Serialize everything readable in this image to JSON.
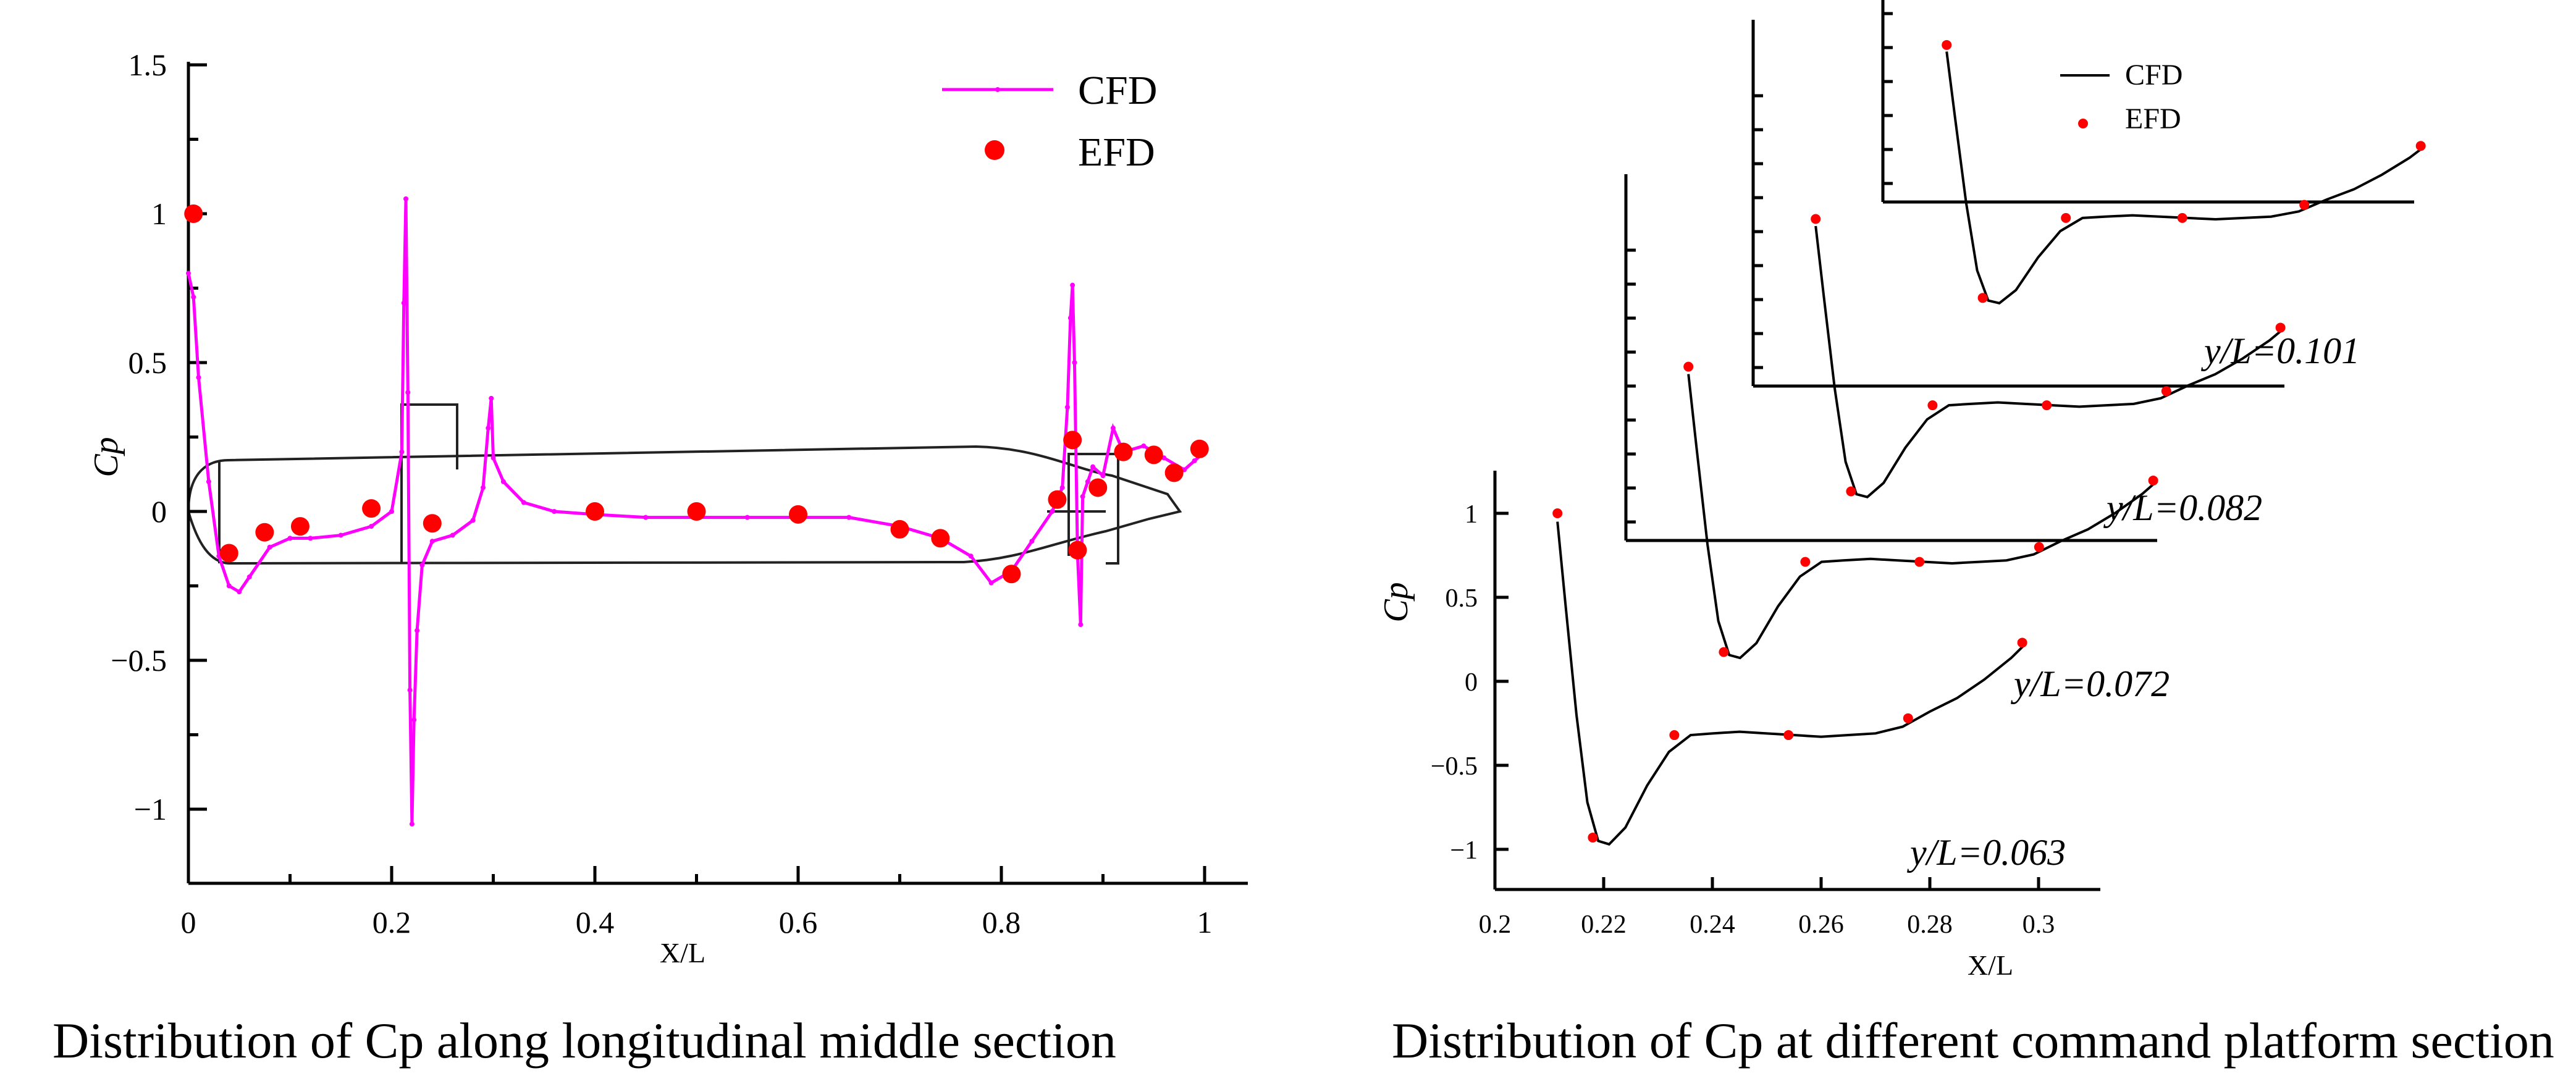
{
  "chart_data": [
    {
      "type": "line",
      "ylabel": "Cp",
      "xlabel": "X/L",
      "xlim": [
        0,
        1.04
      ],
      "ylim": [
        -1.2,
        1.5
      ],
      "xticks": [
        0,
        0.2,
        0.4,
        0.6,
        0.8,
        1
      ],
      "xtick_labels": [
        "0",
        "0.2",
        "0.4",
        "0.6",
        "0.8",
        "1"
      ],
      "yticks": [
        -1,
        -0.5,
        0,
        0.5,
        1,
        1.5
      ],
      "ytick_labels": [
        "−1",
        "−0.5",
        "0",
        "0.5",
        "1",
        "1.5"
      ],
      "legend": [
        "CFD",
        "EFD"
      ],
      "legend_position": "top-right",
      "series": [
        {
          "name": "CFD",
          "color": "#ff00ff",
          "x": [
            0.0,
            0.005,
            0.01,
            0.02,
            0.03,
            0.04,
            0.05,
            0.06,
            0.08,
            0.1,
            0.12,
            0.15,
            0.18,
            0.2,
            0.21,
            0.212,
            0.214,
            0.216,
            0.218,
            0.22,
            0.222,
            0.225,
            0.23,
            0.24,
            0.26,
            0.28,
            0.29,
            0.295,
            0.298,
            0.3,
            0.31,
            0.33,
            0.36,
            0.4,
            0.45,
            0.5,
            0.55,
            0.6,
            0.65,
            0.7,
            0.74,
            0.77,
            0.79,
            0.81,
            0.83,
            0.85,
            0.86,
            0.865,
            0.868,
            0.87,
            0.872,
            0.875,
            0.878,
            0.88,
            0.885,
            0.89,
            0.9,
            0.91,
            0.92,
            0.94,
            0.96,
            0.98,
            0.99,
            1.0
          ],
          "values": [
            0.8,
            0.72,
            0.45,
            0.1,
            -0.15,
            -0.25,
            -0.27,
            -0.22,
            -0.12,
            -0.09,
            -0.09,
            -0.08,
            -0.05,
            0.0,
            0.2,
            0.7,
            1.05,
            0.4,
            -0.6,
            -1.05,
            -0.7,
            -0.4,
            -0.18,
            -0.1,
            -0.08,
            -0.03,
            0.08,
            0.28,
            0.38,
            0.18,
            0.1,
            0.03,
            0.0,
            -0.01,
            -0.02,
            -0.02,
            -0.02,
            -0.02,
            -0.02,
            -0.05,
            -0.09,
            -0.15,
            -0.24,
            -0.2,
            -0.1,
            0.0,
            0.08,
            0.35,
            0.65,
            0.76,
            0.5,
            -0.15,
            -0.38,
            0.05,
            0.1,
            0.15,
            0.12,
            0.28,
            0.2,
            0.22,
            0.18,
            0.14,
            0.17,
            0.2
          ]
        },
        {
          "name": "EFD",
          "color": "#ff0000",
          "x": [
            0.005,
            0.04,
            0.075,
            0.11,
            0.18,
            0.24,
            0.4,
            0.5,
            0.6,
            0.7,
            0.74,
            0.81,
            0.855,
            0.87,
            0.875,
            0.895,
            0.92,
            0.95,
            0.97,
            0.995
          ],
          "values": [
            1.0,
            -0.14,
            -0.07,
            -0.05,
            0.01,
            -0.04,
            0.0,
            0.0,
            -0.01,
            -0.06,
            -0.09,
            -0.21,
            0.04,
            0.24,
            -0.13,
            0.08,
            0.2,
            0.19,
            0.13,
            0.21
          ]
        }
      ]
    },
    {
      "type": "line",
      "ylabel": "Cp",
      "xlabel": "X/L",
      "xlim": [
        0.2,
        0.31
      ],
      "ylim": [
        -1.2,
        1.25
      ],
      "xticks": [
        0.2,
        0.22,
        0.24,
        0.26,
        0.28,
        0.3
      ],
      "xtick_labels": [
        "0.2",
        "0.22",
        "0.24",
        "0.26",
        "0.28",
        "0.3"
      ],
      "yticks": [
        -1,
        -0.5,
        0,
        0.5,
        1
      ],
      "ytick_labels": [
        "−1",
        "−0.5",
        "0",
        "0.5",
        "1"
      ],
      "legend": [
        "CFD",
        "EFD"
      ],
      "legend_position": "top-right",
      "series": [
        {
          "name": "y/L=0.063",
          "label": "y/L=0.063",
          "cfd_x": [
            0.2115,
            0.213,
            0.215,
            0.217,
            0.219,
            0.221,
            0.224,
            0.228,
            0.232,
            0.236,
            0.24,
            0.245,
            0.25,
            0.255,
            0.26,
            0.265,
            0.27,
            0.275,
            0.28,
            0.285,
            0.29,
            0.295,
            0.2975
          ],
          "cfd_y": [
            0.95,
            0.45,
            -0.2,
            -0.72,
            -0.95,
            -0.97,
            -0.87,
            -0.62,
            -0.42,
            -0.32,
            -0.31,
            -0.3,
            -0.31,
            -0.32,
            -0.33,
            -0.32,
            -0.31,
            -0.27,
            -0.18,
            -0.1,
            0.01,
            0.14,
            0.22
          ],
          "efd_x": [
            0.2115,
            0.218,
            0.233,
            0.254,
            0.276,
            0.297
          ],
          "efd_y": [
            1.0,
            -0.93,
            -0.32,
            -0.32,
            -0.22,
            0.23
          ]
        },
        {
          "name": "y/L=0.072",
          "label": "y/L=0.072"
        },
        {
          "name": "y/L=0.082",
          "label": "y/L=0.082"
        },
        {
          "name": "y/L=0.101",
          "label": "y/L=0.101"
        }
      ]
    }
  ],
  "captions": {
    "left": "Distribution of Cp along longitudinal middle section",
    "right": "Distribution of Cp at different command platform section"
  }
}
